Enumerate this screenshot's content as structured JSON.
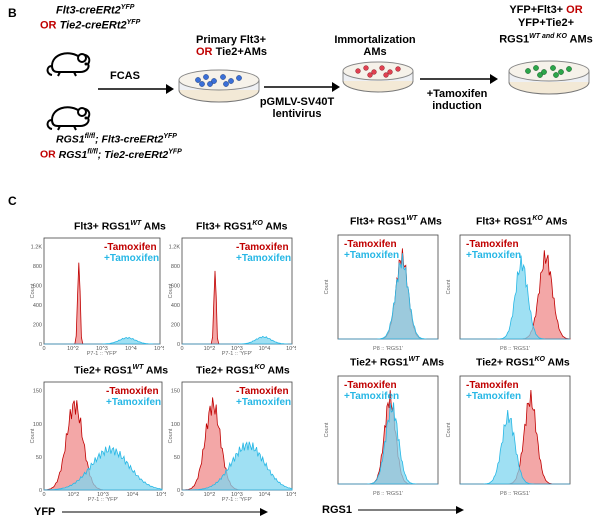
{
  "panel_b": {
    "letter": "B",
    "mouse_lines_top": {
      "line1": "Flt3-creERt2",
      "line1_sup": "YFP",
      "or": "OR",
      "line2": "Tie2-creERt2",
      "line2_sup": "YFP"
    },
    "mouse_lines_bottom": {
      "line1_a": "RGS1",
      "line1_sup1": "fl/fl",
      "line1_b": "; Flt3-creERt2",
      "line1_sup2": "YFP",
      "or": "OR",
      "line2_a": "RGS1",
      "line2_sup1": "fl/fl",
      "line2_b": "; Tie2-creERt2",
      "line2_sup2": "YFP"
    },
    "step_fcas": "FCAS",
    "step_primary_1": "Primary Flt3+",
    "step_primary_or": "OR",
    "step_primary_2": "Tie2+AMs",
    "step_virus_1": "pGMLV-SV40T",
    "step_virus_2": "lentivirus",
    "step_immortal_1": "Immortalization",
    "step_immortal_2": "AMs",
    "step_tamox_1": "+Tamoxifen",
    "step_tamox_2": "induction",
    "step_final_1": "YFP+Flt3+",
    "step_final_or": "OR",
    "step_final_2": "YFP+Tie2+",
    "step_final_3": "RGS1",
    "step_final_sup": "WT and KO",
    "step_final_4": "AMs",
    "colors": {
      "red": "#c00000",
      "cyan": "#27b7e5",
      "dish_blue": "#3a6fd8",
      "dish_red": "#e04050",
      "dish_green": "#2ca64a"
    },
    "icons": [
      "mouse-icon",
      "mouse-icon",
      "petri-dish-icon",
      "arrow-right-icon"
    ]
  },
  "panel_c": {
    "letter": "C",
    "legend_minus": "-Tamoxifen",
    "legend_plus": "+Tamoxifen",
    "xaxis_yfp": "YFP",
    "xaxis_rgs1": "RGS1",
    "axis_caption_yfp": "P7-1 :: 'YFP'",
    "axis_caption_rgs1": "P8 :: 'RGS1'",
    "ylabel": "Count",
    "titles": [
      {
        "pre": "Flt3+ RGS1",
        "sup": "WT",
        "post": " AMs"
      },
      {
        "pre": "Flt3+ RGS1",
        "sup": "KO",
        "post": " AMs"
      },
      {
        "pre": "Flt3+ RGS1",
        "sup": "WT",
        "post": " AMs"
      },
      {
        "pre": "Flt3+ RGS1",
        "sup": "KO",
        "post": " AMs"
      },
      {
        "pre": "Tie2+ RGS1",
        "sup": "WT",
        "post": " AMs"
      },
      {
        "pre": "Tie2+ RGS1",
        "sup": "KO",
        "post": " AMs"
      },
      {
        "pre": "Tie2+ RGS1",
        "sup": "WT",
        "post": " AMs"
      },
      {
        "pre": "Tie2+ RGS1",
        "sup": "KO",
        "post": " AMs"
      }
    ]
  },
  "chart_data": [
    {
      "type": "area",
      "title": "Flt3+ RGS1 WT AMs (YFP)",
      "xlabel": "YFP",
      "ylabel": "Count",
      "yticks": [
        "0",
        "200",
        "400",
        "600",
        "800",
        "1.2K"
      ],
      "xticks": [
        "0",
        "10^2",
        "10^3",
        "10^4",
        "10^5"
      ],
      "ylim": [
        0,
        1200
      ],
      "series": [
        {
          "name": "-Tamoxifen",
          "color": "#c00000",
          "peak_log": 1.5,
          "width": 0.05,
          "height": 1.0
        },
        {
          "name": "+Tamoxifen",
          "color": "#27b7e5",
          "peak_log": 3.6,
          "width": 0.35,
          "height": 0.07
        }
      ]
    },
    {
      "type": "area",
      "title": "Flt3+ RGS1 KO AMs (YFP)",
      "xlabel": "YFP",
      "ylabel": "Count",
      "yticks": [
        "0",
        "200",
        "400",
        "600",
        "800",
        "1.2K"
      ],
      "xticks": [
        "0",
        "10^2",
        "10^3",
        "10^4",
        "10^5"
      ],
      "ylim": [
        0,
        1200
      ],
      "series": [
        {
          "name": "-Tamoxifen",
          "color": "#c00000",
          "peak_log": 1.5,
          "width": 0.05,
          "height": 0.9
        },
        {
          "name": "+Tamoxifen",
          "color": "#27b7e5",
          "peak_log": 3.7,
          "width": 0.35,
          "height": 0.08
        }
      ]
    },
    {
      "type": "area",
      "title": "Flt3+ RGS1 WT AMs (RGS1)",
      "xlabel": "RGS1",
      "ylabel": "Count",
      "ylim": [
        0,
        1
      ],
      "series": [
        {
          "name": "-Tamoxifen",
          "color": "#c00000",
          "peak_log": 3.2,
          "width": 0.3,
          "height": 0.95
        },
        {
          "name": "+Tamoxifen",
          "color": "#27b7e5",
          "peak_log": 3.2,
          "width": 0.32,
          "height": 0.9
        }
      ]
    },
    {
      "type": "area",
      "title": "Flt3+ RGS1 KO AMs (RGS1)",
      "xlabel": "RGS1",
      "ylabel": "Count",
      "ylim": [
        0,
        1
      ],
      "series": [
        {
          "name": "-Tamoxifen",
          "color": "#c00000",
          "peak_log": 3.9,
          "width": 0.3,
          "height": 0.95
        },
        {
          "name": "+Tamoxifen",
          "color": "#27b7e5",
          "peak_log": 2.8,
          "width": 0.28,
          "height": 0.88
        }
      ]
    },
    {
      "type": "area",
      "title": "Tie2+ RGS1 WT AMs (YFP)",
      "xlabel": "YFP",
      "ylabel": "Count",
      "yticks": [
        "0",
        "50",
        "100",
        "150"
      ],
      "xticks": [
        "0",
        "10^2",
        "10^3",
        "10^4",
        "10^5"
      ],
      "ylim": [
        0,
        150
      ],
      "series": [
        {
          "name": "-Tamoxifen",
          "color": "#c00000",
          "peak_log": 1.3,
          "width": 0.35,
          "height": 0.95
        },
        {
          "name": "+Tamoxifen",
          "color": "#27b7e5",
          "peak_log": 2.8,
          "width": 0.8,
          "height": 0.45
        }
      ]
    },
    {
      "type": "area",
      "title": "Tie2+ RGS1 KO AMs (YFP)",
      "xlabel": "YFP",
      "ylabel": "Count",
      "yticks": [
        "0",
        "50",
        "100",
        "150"
      ],
      "xticks": [
        "0",
        "10^2",
        "10^3",
        "10^4",
        "10^5"
      ],
      "ylim": [
        0,
        150
      ],
      "series": [
        {
          "name": "-Tamoxifen",
          "color": "#c00000",
          "peak_log": 1.4,
          "width": 0.35,
          "height": 0.95
        },
        {
          "name": "+Tamoxifen",
          "color": "#27b7e5",
          "peak_log": 3.0,
          "width": 0.75,
          "height": 0.5
        }
      ]
    },
    {
      "type": "area",
      "title": "Tie2+ RGS1 WT AMs (RGS1)",
      "xlabel": "RGS1",
      "ylabel": "Count",
      "ylim": [
        0,
        1
      ],
      "series": [
        {
          "name": "-Tamoxifen",
          "color": "#c00000",
          "peak_log": 2.6,
          "width": 0.28,
          "height": 0.95
        },
        {
          "name": "+Tamoxifen",
          "color": "#27b7e5",
          "peak_log": 2.7,
          "width": 0.32,
          "height": 0.85
        }
      ]
    },
    {
      "type": "area",
      "title": "Tie2+ RGS1 KO AMs (RGS1)",
      "xlabel": "RGS1",
      "ylabel": "Count",
      "ylim": [
        0,
        1
      ],
      "series": [
        {
          "name": "-Tamoxifen",
          "color": "#c00000",
          "peak_log": 3.2,
          "width": 0.28,
          "height": 0.95
        },
        {
          "name": "+Tamoxifen",
          "color": "#27b7e5",
          "peak_log": 2.2,
          "width": 0.3,
          "height": 0.75
        }
      ]
    }
  ]
}
